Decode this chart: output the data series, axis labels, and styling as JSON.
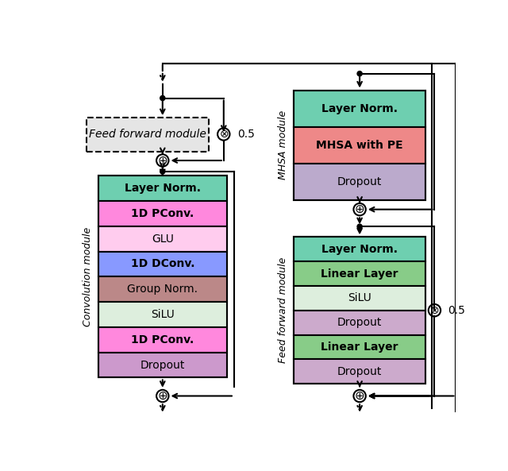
{
  "conv_layers": [
    "Layer Norm.",
    "1D PConv.",
    "GLU",
    "1D DConv.",
    "Group Norm.",
    "SiLU",
    "1D PConv.",
    "Dropout"
  ],
  "conv_colors": [
    "#6ECFB0",
    "#FF88DD",
    "#FFCCEE",
    "#8899FF",
    "#BB8888",
    "#DDEEDD",
    "#FF88DD",
    "#CC99CC"
  ],
  "conv_label": "Convolution module",
  "mhsa_layers": [
    "Layer Norm.",
    "MHSA with PE",
    "Dropout"
  ],
  "mhsa_colors": [
    "#6ECFB0",
    "#EE8888",
    "#BBAACC"
  ],
  "mhsa_label": "MHSA module",
  "ff_layers": [
    "Layer Norm.",
    "Linear Layer",
    "SiLU",
    "Dropout",
    "Linear Layer",
    "Dropout"
  ],
  "ff_colors": [
    "#6ECFB0",
    "#88CC88",
    "#DDEEDD",
    "#CCAACC",
    "#88CC88",
    "#CCAACC"
  ],
  "ff_label": "Feed forward module",
  "ff_left_label": "Feed forward module",
  "bg_color": "white"
}
